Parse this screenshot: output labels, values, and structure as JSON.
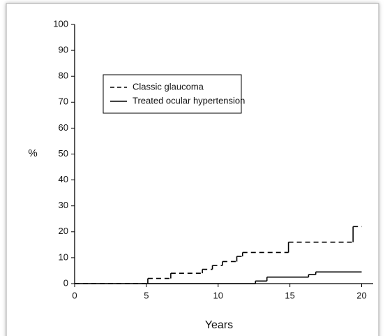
{
  "chart_data": {
    "type": "step",
    "xlabel": "Years",
    "ylabel": "%",
    "xlim": [
      0,
      20.8
    ],
    "ylim": [
      0,
      100
    ],
    "xticks": [
      0,
      5,
      10,
      15,
      20
    ],
    "yticks": [
      0,
      10,
      20,
      30,
      40,
      50,
      60,
      70,
      80,
      90,
      100
    ],
    "series": [
      {
        "name": "Classic glaucoma",
        "color": "#000000",
        "dash": "7,5",
        "x": [
          0,
          5.1,
          6.7,
          8.9,
          9.6,
          10.3,
          11.3,
          11.7,
          14.9,
          19.4,
          20
        ],
        "values": [
          0,
          2,
          4,
          5.5,
          7,
          8.5,
          10.5,
          12,
          16,
          22,
          22
        ]
      },
      {
        "name": "Treated ocular hypertension",
        "color": "#000000",
        "dash": "none",
        "x": [
          0,
          12.6,
          13.4,
          16.3,
          16.8,
          20
        ],
        "values": [
          0,
          1,
          2.5,
          3.5,
          4.5,
          4.5
        ]
      }
    ]
  }
}
